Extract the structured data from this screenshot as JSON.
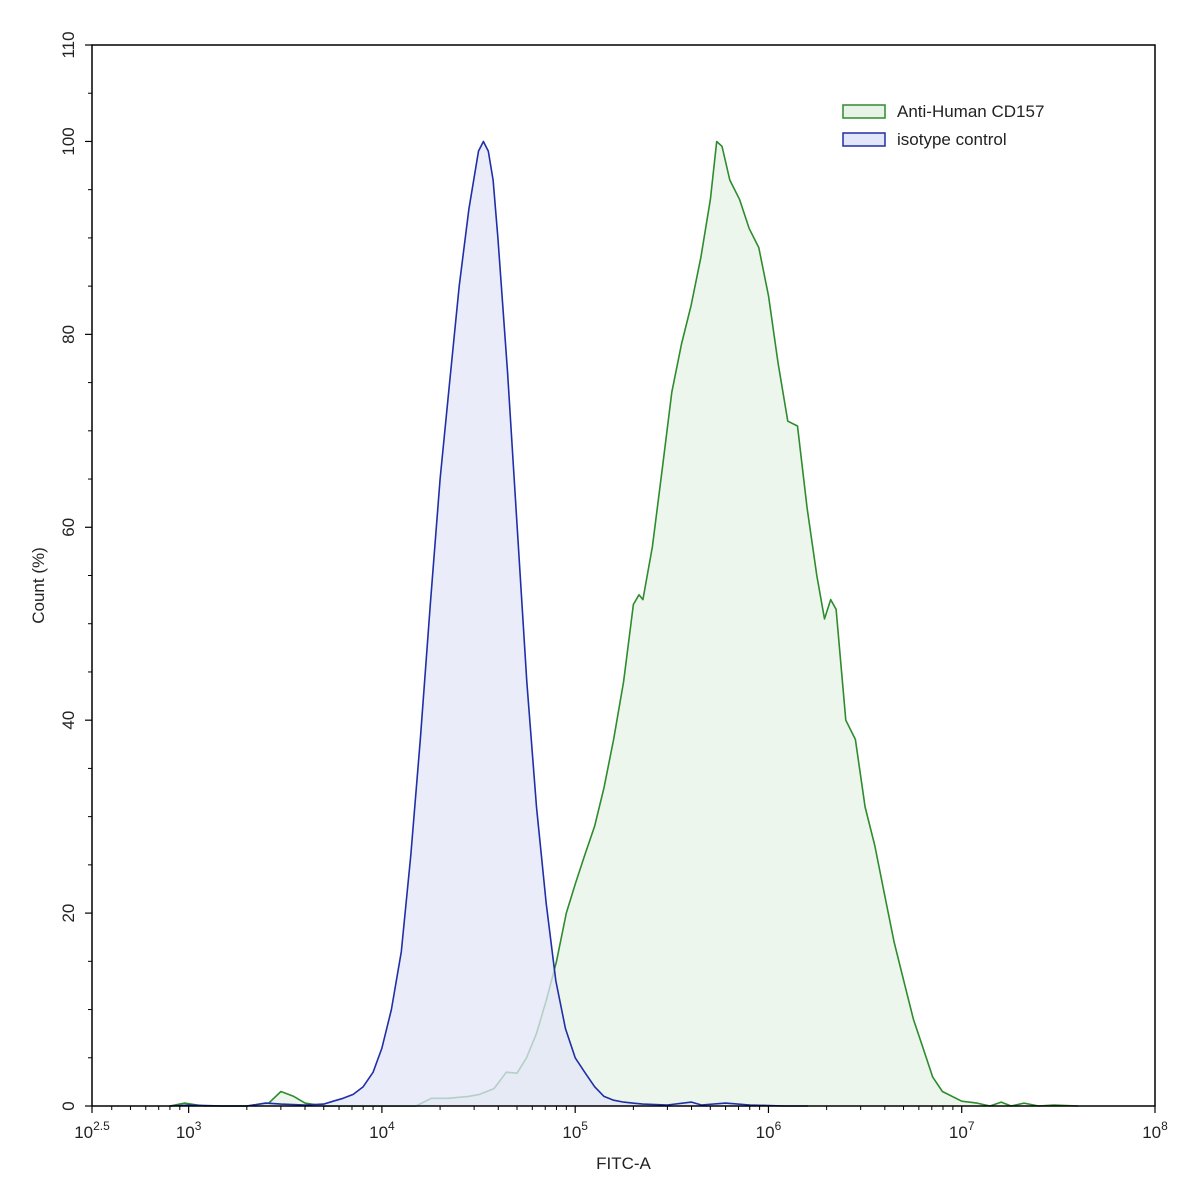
{
  "chart_data": {
    "type": "area",
    "title": "",
    "xlabel": "FITC-A",
    "ylabel": "Count  (%)",
    "x_scale": "log10",
    "xlim": [
      316.2,
      100000000
    ],
    "ylim": [
      0,
      110
    ],
    "x_ticks": [
      {
        "value": 316.2,
        "base": "10",
        "exp": "2.5"
      },
      {
        "value": 1000,
        "base": "10",
        "exp": "3"
      },
      {
        "value": 10000,
        "base": "10",
        "exp": "4"
      },
      {
        "value": 100000,
        "base": "10",
        "exp": "5"
      },
      {
        "value": 1000000,
        "base": "10",
        "exp": "6"
      },
      {
        "value": 10000000,
        "base": "10",
        "exp": "7"
      },
      {
        "value": 100000000,
        "base": "10",
        "exp": "8"
      }
    ],
    "y_ticks": [
      {
        "value": 0,
        "label": "0"
      },
      {
        "value": 20,
        "label": "20"
      },
      {
        "value": 40,
        "label": "40"
      },
      {
        "value": 60,
        "label": "60"
      },
      {
        "value": 80,
        "label": "80"
      },
      {
        "value": 100,
        "label": "100"
      },
      {
        "value": 110,
        "label": "110"
      }
    ],
    "legend_position": "top-right",
    "grid": false,
    "series": [
      {
        "name": "Anti-Human CD157",
        "line_color": "#2e8b2e",
        "fill_color": "#e6f3e6",
        "points": [
          [
            800,
            0
          ],
          [
            950,
            0.3
          ],
          [
            1200,
            0
          ],
          [
            2000,
            0
          ],
          [
            2600,
            0.3
          ],
          [
            3000,
            1.5
          ],
          [
            3500,
            1.0
          ],
          [
            4000,
            0.3
          ],
          [
            5000,
            0
          ],
          [
            8000,
            0
          ],
          [
            11000,
            0
          ],
          [
            15000,
            0
          ],
          [
            18000,
            0.8
          ],
          [
            22000,
            0.8
          ],
          [
            28000,
            1.0
          ],
          [
            32000,
            1.2
          ],
          [
            38000,
            1.8
          ],
          [
            44000,
            3.5
          ],
          [
            50000,
            3.4
          ],
          [
            56000,
            5.0
          ],
          [
            63000,
            7.5
          ],
          [
            71000,
            11.0
          ],
          [
            80000,
            15.0
          ],
          [
            90000,
            20.0
          ],
          [
            100000,
            23.0
          ],
          [
            112000,
            26.0
          ],
          [
            126000,
            29.0
          ],
          [
            141000,
            33.0
          ],
          [
            158000,
            38.0
          ],
          [
            178000,
            44.0
          ],
          [
            200000,
            52.0
          ],
          [
            214000,
            53.0
          ],
          [
            224000,
            52.5
          ],
          [
            251000,
            58.0
          ],
          [
            282000,
            66.0
          ],
          [
            316000,
            74.0
          ],
          [
            355000,
            79.0
          ],
          [
            398000,
            83.0
          ],
          [
            447000,
            88.0
          ],
          [
            501000,
            94.0
          ],
          [
            540000,
            100.0
          ],
          [
            575000,
            99.5
          ],
          [
            631000,
            96.0
          ],
          [
            708000,
            94.0
          ],
          [
            794000,
            91.0
          ],
          [
            891000,
            89.0
          ],
          [
            1000000,
            84.0
          ],
          [
            1122000,
            77.0
          ],
          [
            1259000,
            71.0
          ],
          [
            1413000,
            70.5
          ],
          [
            1585000,
            62.0
          ],
          [
            1778000,
            55.0
          ],
          [
            1950000,
            50.5
          ],
          [
            2100000,
            52.5
          ],
          [
            2239000,
            51.5
          ],
          [
            2512000,
            40.0
          ],
          [
            2818000,
            38.0
          ],
          [
            3162000,
            31.0
          ],
          [
            3548000,
            27.0
          ],
          [
            3981000,
            22.0
          ],
          [
            4467000,
            17.0
          ],
          [
            5012000,
            13.0
          ],
          [
            5623000,
            9.0
          ],
          [
            6310000,
            6.0
          ],
          [
            7079000,
            3.0
          ],
          [
            7943000,
            1.5
          ],
          [
            10000000,
            0.5
          ],
          [
            12000000,
            0.3
          ],
          [
            14000000,
            0
          ],
          [
            16000000,
            0.4
          ],
          [
            18000000,
            0
          ],
          [
            21000000,
            0.3
          ],
          [
            25000000,
            0
          ],
          [
            30000000,
            0.1
          ],
          [
            40000000,
            0
          ]
        ]
      },
      {
        "name": "isotype control",
        "line_color": "#1f2fa6",
        "fill_color": "#e3e5f8",
        "points": [
          [
            800,
            0
          ],
          [
            1000,
            0.1
          ],
          [
            1500,
            0
          ],
          [
            2000,
            0
          ],
          [
            2500,
            0.3
          ],
          [
            3000,
            0.2
          ],
          [
            4000,
            0.1
          ],
          [
            5000,
            0.2
          ],
          [
            5600,
            0.5
          ],
          [
            6300,
            0.8
          ],
          [
            7100,
            1.2
          ],
          [
            8000,
            2.0
          ],
          [
            9000,
            3.5
          ],
          [
            10000,
            6.0
          ],
          [
            11200,
            10.0
          ],
          [
            12600,
            16.0
          ],
          [
            14100,
            26.0
          ],
          [
            15800,
            38.0
          ],
          [
            17800,
            52.0
          ],
          [
            20000,
            65.0
          ],
          [
            22400,
            75.0
          ],
          [
            25100,
            85.0
          ],
          [
            28200,
            93.0
          ],
          [
            31600,
            99.0
          ],
          [
            33500,
            100.0
          ],
          [
            35500,
            99.0
          ],
          [
            37600,
            96.0
          ],
          [
            39800,
            90.0
          ],
          [
            44700,
            76.0
          ],
          [
            50100,
            60.0
          ],
          [
            56200,
            44.0
          ],
          [
            63100,
            31.0
          ],
          [
            70800,
            21.0
          ],
          [
            79400,
            13.0
          ],
          [
            89100,
            8.0
          ],
          [
            100000,
            5.0
          ],
          [
            112000,
            3.5
          ],
          [
            126000,
            2.0
          ],
          [
            141000,
            1.0
          ],
          [
            158000,
            0.6
          ],
          [
            178000,
            0.4
          ],
          [
            224000,
            0.2
          ],
          [
            300000,
            0.1
          ],
          [
            400000,
            0.4
          ],
          [
            450000,
            0.1
          ],
          [
            600000,
            0.3
          ],
          [
            800000,
            0.1
          ],
          [
            1200000,
            0
          ],
          [
            1600000,
            0
          ]
        ]
      }
    ]
  }
}
